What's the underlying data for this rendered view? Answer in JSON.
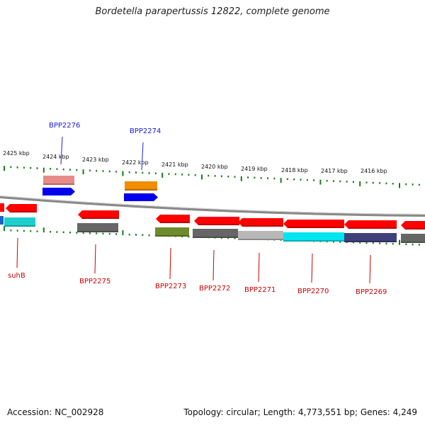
{
  "title": "Bordetella parapertussis 12822, complete genome",
  "footer": {
    "accession": "Accession: NC_002928",
    "topology": "Topology: circular; Length: 4,773,551 bp; Genes: 4,249"
  },
  "scale": {
    "labels": [
      "2425 kbp",
      "2424 kbp",
      "2423 kbp",
      "2422 kbp",
      "2421 kbp",
      "2420 kbp",
      "2419 kbp",
      "2418 kbp",
      "2417 kbp",
      "2416 kbp"
    ]
  },
  "genes": {
    "forward": [
      {
        "name": "BPP2276",
        "color": "#e88a8a",
        "arrow_color": "#0000ee",
        "label_color": "#1a1adb"
      },
      {
        "name": "BPP2274",
        "color": "#f28c00",
        "arrow_color": "#0000ee",
        "label_color": "#1a1adb"
      }
    ],
    "reverse": [
      {
        "name": "suhB",
        "color": "#ff0000",
        "band_color": "#1dcfcf",
        "label_color": "#cc0000"
      },
      {
        "name": "BPP2275",
        "color": "#ff0000",
        "band_color": "#666666",
        "label_color": "#cc0000"
      },
      {
        "name": "BPP2273",
        "color": "#ff0000",
        "band_color": "#6e8b2e",
        "label_color": "#cc0000"
      },
      {
        "name": "BPP2272",
        "color": "#ff0000",
        "band_color": "#666666",
        "label_color": "#cc0000"
      },
      {
        "name": "BPP2271",
        "color": "#ff0000",
        "band_color": "#b8b8b8",
        "label_color": "#cc0000"
      },
      {
        "name": "BPP2270",
        "color": "#ff0000",
        "band_color": "#00e5f0",
        "label_color": "#cc0000"
      },
      {
        "name": "BPP2269",
        "color": "#ff0000",
        "band_color": "#40407a",
        "label_color": "#cc0000"
      }
    ]
  },
  "colors": {
    "backbone": "#888888",
    "ticks": "#1a7a1a"
  }
}
